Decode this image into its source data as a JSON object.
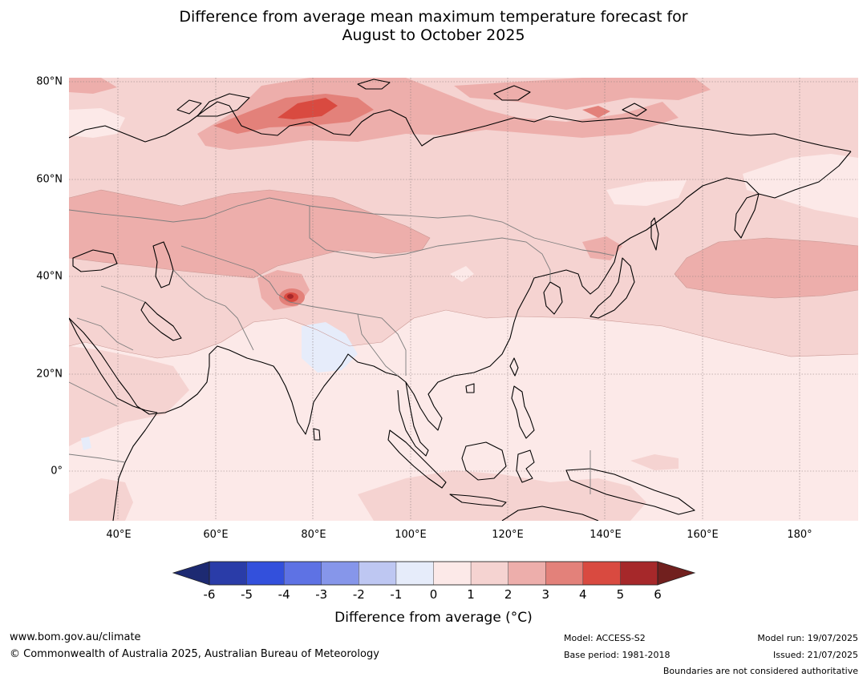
{
  "title": {
    "line1": "Difference from average mean maximum temperature forecast for",
    "line2": "August to October 2025"
  },
  "map": {
    "region": "Asia",
    "lat_labels": [
      "80°N",
      "60°N",
      "40°N",
      "20°N",
      "0°"
    ],
    "lon_labels": [
      "40°E",
      "60°E",
      "80°E",
      "100°E",
      "120°E",
      "140°E",
      "160°E",
      "180°"
    ]
  },
  "colorbar": {
    "ticks": [
      "-6",
      "-5",
      "-4",
      "-3",
      "-2",
      "-1",
      "0",
      "1",
      "2",
      "3",
      "4",
      "5",
      "6"
    ],
    "colors": [
      "#2a3ca8",
      "#3350dc",
      "#5e72e4",
      "#8696ea",
      "#bec7f2",
      "#e6ecfa",
      "#fce9e8",
      "#f5d3d1",
      "#edaeab",
      "#e3817a",
      "#d94a40",
      "#a6282a"
    ],
    "under_color": "#1d2a72",
    "over_color": "#71201e",
    "label": "Difference from average (°C)"
  },
  "footer": {
    "website": "www.bom.gov.au/climate",
    "copyright": "© Commonwealth of Australia 2025, Australian Bureau of Meteorology",
    "model": "Model: ACCESS-S2",
    "base_period": "Base period: 1981-2018",
    "model_run": "Model run: 19/07/2025",
    "issued": "Issued: 21/07/2025",
    "disclaimer": "Boundaries are not considered authoritative"
  }
}
